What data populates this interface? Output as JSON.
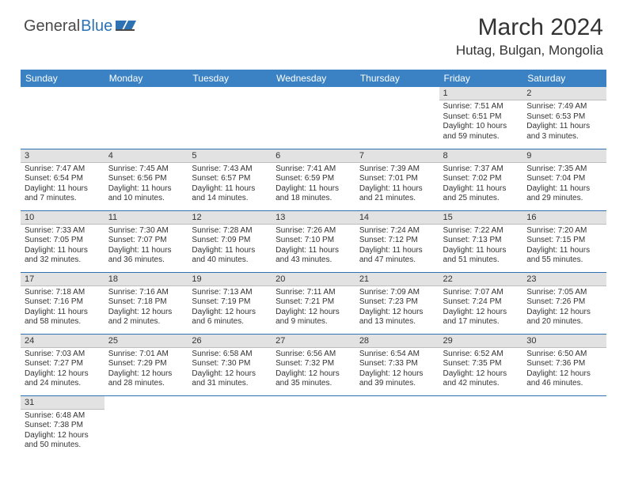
{
  "brand": {
    "part1": "General",
    "part2": "Blue"
  },
  "title": "March 2024",
  "location": "Hutag, Bulgan, Mongolia",
  "colors": {
    "header_bg": "#3a82c4",
    "row_divider": "#2f72b3",
    "daynum_bg": "#e2e2e2",
    "text": "#333333"
  },
  "dayNames": [
    "Sunday",
    "Monday",
    "Tuesday",
    "Wednesday",
    "Thursday",
    "Friday",
    "Saturday"
  ],
  "weeks": [
    [
      null,
      null,
      null,
      null,
      null,
      {
        "n": "1",
        "sr": "7:51 AM",
        "ss": "6:51 PM",
        "dl": "10 hours and 59 minutes."
      },
      {
        "n": "2",
        "sr": "7:49 AM",
        "ss": "6:53 PM",
        "dl": "11 hours and 3 minutes."
      }
    ],
    [
      {
        "n": "3",
        "sr": "7:47 AM",
        "ss": "6:54 PM",
        "dl": "11 hours and 7 minutes."
      },
      {
        "n": "4",
        "sr": "7:45 AM",
        "ss": "6:56 PM",
        "dl": "11 hours and 10 minutes."
      },
      {
        "n": "5",
        "sr": "7:43 AM",
        "ss": "6:57 PM",
        "dl": "11 hours and 14 minutes."
      },
      {
        "n": "6",
        "sr": "7:41 AM",
        "ss": "6:59 PM",
        "dl": "11 hours and 18 minutes."
      },
      {
        "n": "7",
        "sr": "7:39 AM",
        "ss": "7:01 PM",
        "dl": "11 hours and 21 minutes."
      },
      {
        "n": "8",
        "sr": "7:37 AM",
        "ss": "7:02 PM",
        "dl": "11 hours and 25 minutes."
      },
      {
        "n": "9",
        "sr": "7:35 AM",
        "ss": "7:04 PM",
        "dl": "11 hours and 29 minutes."
      }
    ],
    [
      {
        "n": "10",
        "sr": "7:33 AM",
        "ss": "7:05 PM",
        "dl": "11 hours and 32 minutes."
      },
      {
        "n": "11",
        "sr": "7:30 AM",
        "ss": "7:07 PM",
        "dl": "11 hours and 36 minutes."
      },
      {
        "n": "12",
        "sr": "7:28 AM",
        "ss": "7:09 PM",
        "dl": "11 hours and 40 minutes."
      },
      {
        "n": "13",
        "sr": "7:26 AM",
        "ss": "7:10 PM",
        "dl": "11 hours and 43 minutes."
      },
      {
        "n": "14",
        "sr": "7:24 AM",
        "ss": "7:12 PM",
        "dl": "11 hours and 47 minutes."
      },
      {
        "n": "15",
        "sr": "7:22 AM",
        "ss": "7:13 PM",
        "dl": "11 hours and 51 minutes."
      },
      {
        "n": "16",
        "sr": "7:20 AM",
        "ss": "7:15 PM",
        "dl": "11 hours and 55 minutes."
      }
    ],
    [
      {
        "n": "17",
        "sr": "7:18 AM",
        "ss": "7:16 PM",
        "dl": "11 hours and 58 minutes."
      },
      {
        "n": "18",
        "sr": "7:16 AM",
        "ss": "7:18 PM",
        "dl": "12 hours and 2 minutes."
      },
      {
        "n": "19",
        "sr": "7:13 AM",
        "ss": "7:19 PM",
        "dl": "12 hours and 6 minutes."
      },
      {
        "n": "20",
        "sr": "7:11 AM",
        "ss": "7:21 PM",
        "dl": "12 hours and 9 minutes."
      },
      {
        "n": "21",
        "sr": "7:09 AM",
        "ss": "7:23 PM",
        "dl": "12 hours and 13 minutes."
      },
      {
        "n": "22",
        "sr": "7:07 AM",
        "ss": "7:24 PM",
        "dl": "12 hours and 17 minutes."
      },
      {
        "n": "23",
        "sr": "7:05 AM",
        "ss": "7:26 PM",
        "dl": "12 hours and 20 minutes."
      }
    ],
    [
      {
        "n": "24",
        "sr": "7:03 AM",
        "ss": "7:27 PM",
        "dl": "12 hours and 24 minutes."
      },
      {
        "n": "25",
        "sr": "7:01 AM",
        "ss": "7:29 PM",
        "dl": "12 hours and 28 minutes."
      },
      {
        "n": "26",
        "sr": "6:58 AM",
        "ss": "7:30 PM",
        "dl": "12 hours and 31 minutes."
      },
      {
        "n": "27",
        "sr": "6:56 AM",
        "ss": "7:32 PM",
        "dl": "12 hours and 35 minutes."
      },
      {
        "n": "28",
        "sr": "6:54 AM",
        "ss": "7:33 PM",
        "dl": "12 hours and 39 minutes."
      },
      {
        "n": "29",
        "sr": "6:52 AM",
        "ss": "7:35 PM",
        "dl": "12 hours and 42 minutes."
      },
      {
        "n": "30",
        "sr": "6:50 AM",
        "ss": "7:36 PM",
        "dl": "12 hours and 46 minutes."
      }
    ],
    [
      {
        "n": "31",
        "sr": "6:48 AM",
        "ss": "7:38 PM",
        "dl": "12 hours and 50 minutes."
      },
      null,
      null,
      null,
      null,
      null,
      null
    ]
  ],
  "labels": {
    "sunrise": "Sunrise:",
    "sunset": "Sunset:",
    "daylight": "Daylight:"
  }
}
